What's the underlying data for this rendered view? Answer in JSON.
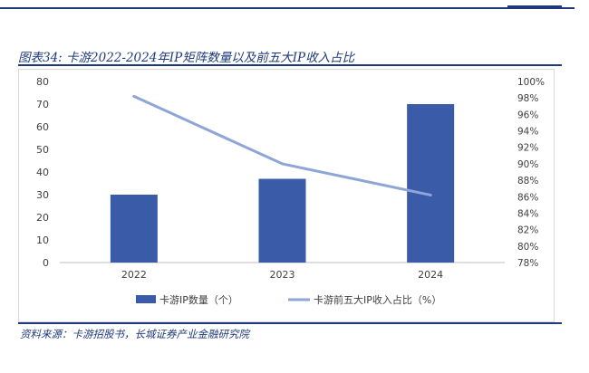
{
  "figure": {
    "label": "图表34:",
    "title": "卡游2022-2024年IP矩阵数量以及前五大IP收入占比"
  },
  "source": "资料来源：卡游招股书，长城证券产业金融研究院",
  "chart_data": {
    "type": "bar",
    "categories": [
      "2022",
      "2023",
      "2024"
    ],
    "series": [
      {
        "name": "卡游IP数量（个）",
        "kind": "bar",
        "axis": "left",
        "values": [
          30,
          37,
          70
        ]
      },
      {
        "name": "卡游前五大IP收入占比（%）",
        "kind": "line",
        "axis": "right",
        "values": [
          98.2,
          90.0,
          86.2
        ]
      }
    ],
    "ylim": [
      0,
      80
    ],
    "yticks": [
      "0",
      "10",
      "20",
      "30",
      "40",
      "50",
      "60",
      "70",
      "80"
    ],
    "y2lim": [
      78,
      100
    ],
    "y2ticks": [
      "78%",
      "80%",
      "82%",
      "84%",
      "86%",
      "88%",
      "90%",
      "92%",
      "94%",
      "96%",
      "98%",
      "100%"
    ],
    "grid": false,
    "legend_position": "bottom",
    "colors": {
      "bar": "#3a5ca8",
      "line": "#8ea5d8",
      "title": "#1f3a7a"
    }
  }
}
